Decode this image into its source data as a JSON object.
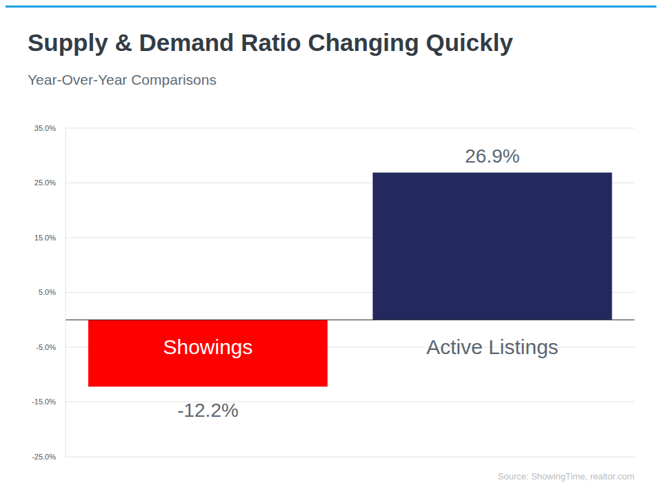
{
  "chart_data": {
    "type": "bar",
    "title": "Supply & Demand Ratio Changing Quickly",
    "subtitle": "Year-Over-Year Comparisons",
    "source": "Source: ShowingTime, realtor.com",
    "categories": [
      "Showings",
      "Active Listings"
    ],
    "values": [
      -12.2,
      26.9
    ],
    "value_labels": [
      "-12.2%",
      "26.9%"
    ],
    "colors": [
      "#ff0000",
      "#23295e"
    ],
    "ylim": [
      -25,
      35
    ],
    "yticks": [
      {
        "value": -25,
        "label": "-25.0%"
      },
      {
        "value": -15,
        "label": "-15.0%"
      },
      {
        "value": -5,
        "label": "-5.0%"
      },
      {
        "value": 5,
        "label": "5.0%"
      },
      {
        "value": 15,
        "label": "15.0%"
      },
      {
        "value": 25,
        "label": "25.0%"
      },
      {
        "value": 35,
        "label": "35.0%"
      }
    ],
    "grid": true,
    "data_labels": true
  }
}
